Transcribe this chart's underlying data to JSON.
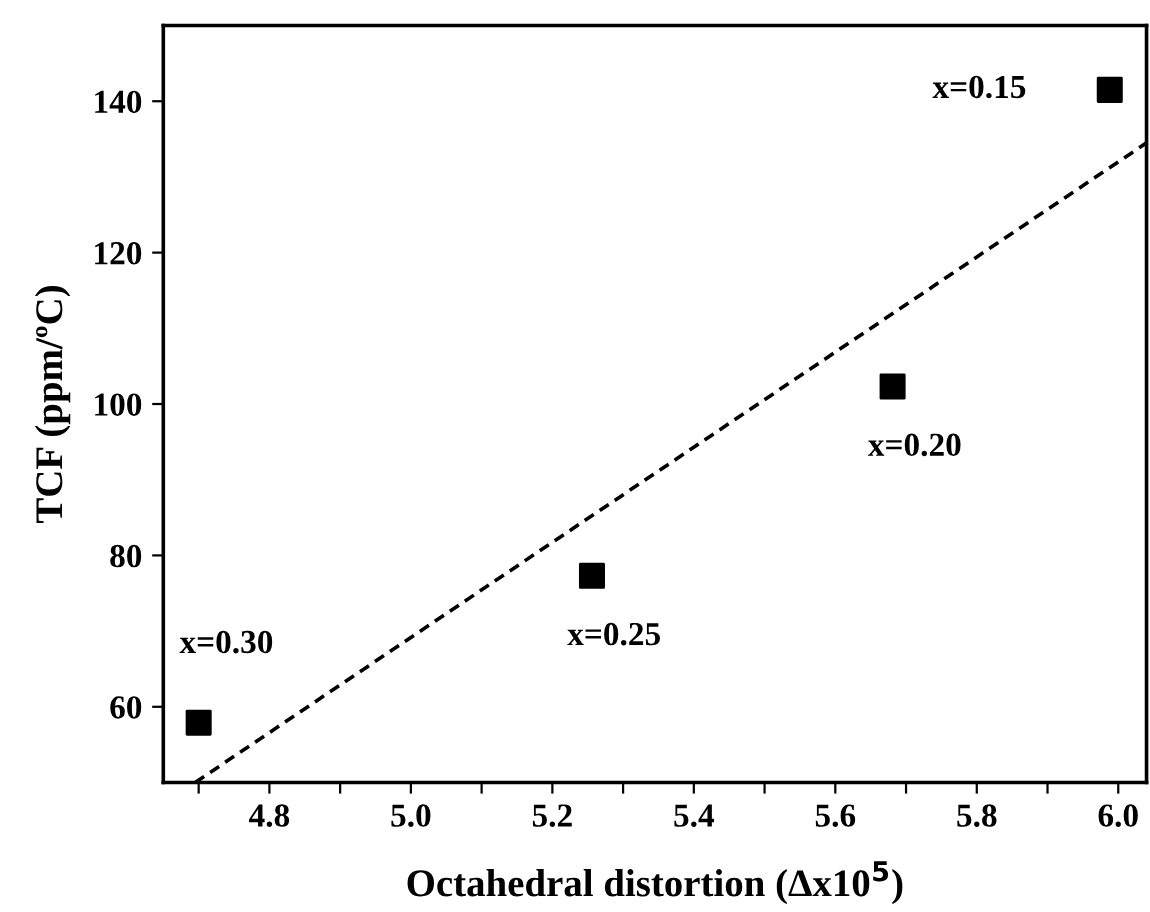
{
  "chart_data": {
    "type": "scatter",
    "xlabel": "Octahedral distortion (Δx10$^{5}$)",
    "ylabel": "TCF (ppm/ºC)",
    "series": [
      {
        "color": "#000000",
        "marker": "square",
        "x": [
          4.7,
          5.256,
          5.681,
          5.988
        ],
        "values": [
          57.9,
          77.3,
          102.3,
          141.5
        ]
      },
      {
        "type": "line",
        "color": "#000000",
        "line_style": "dashed",
        "marker": "none",
        "x": [
          4.695,
          6.04
        ],
        "values": [
          50,
          134.5
        ]
      }
    ],
    "annotations": [
      {
        "text": "x=0.30",
        "x": 4.7,
        "y": 57.9
      },
      {
        "text": "x=0.25",
        "x": 5.256,
        "y": 77.3
      },
      {
        "text": "x=0.20",
        "x": 5.681,
        "y": 102.3
      },
      {
        "text": "x=0.15",
        "x": 5.988,
        "y": 141.5
      }
    ],
    "xlim": [
      4.65,
      6.04
    ],
    "ylim": [
      50,
      150
    ],
    "xticks": [
      {
        "value": 4.7,
        "label": null
      },
      4.8,
      {
        "value": 4.9,
        "label": null
      },
      {
        "value": 5.0,
        "label": "5.0"
      },
      {
        "value": 5.1,
        "label": null
      },
      5.2,
      {
        "value": 5.3,
        "label": null
      },
      5.4,
      {
        "value": 5.5,
        "label": null
      },
      5.6,
      {
        "value": 5.7,
        "label": null
      },
      5.8,
      {
        "value": 5.9,
        "label": null
      },
      {
        "value": 6.0,
        "label": "6.0"
      }
    ],
    "yticks": [
      60,
      80,
      100,
      120,
      140
    ],
    "grid": false,
    "legend": false
  }
}
